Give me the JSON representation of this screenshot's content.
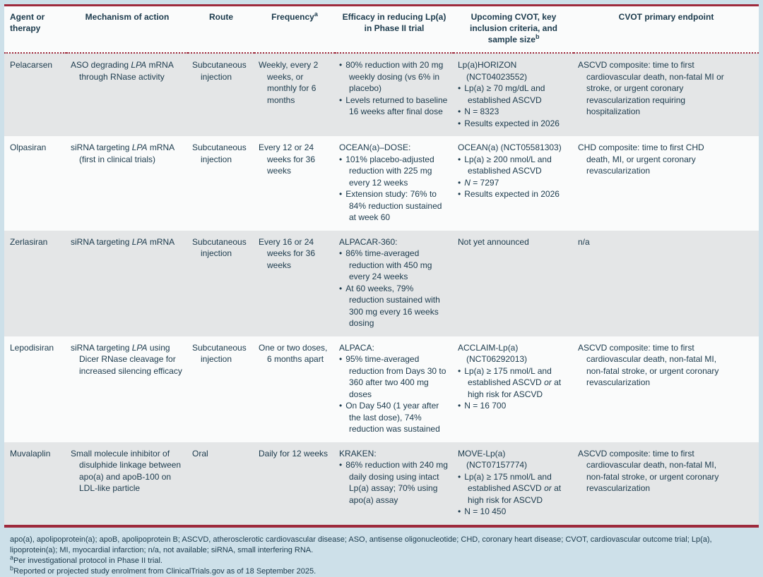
{
  "colors": {
    "page_bg": "#cde0e9",
    "accent_red": "#9e2a3c",
    "row_gray": "#e4e6e7",
    "row_white": "#fafbfb",
    "text": "#1b3a4c"
  },
  "bullet_glyph": "•",
  "table": {
    "columns": [
      "Agent or therapy",
      "Mechanism of action",
      "Route",
      "Frequency^a^",
      "Efficacy in reducing Lp(a) in Phase II trial",
      "Upcoming CVOT, key inclusion criteria, and sample size^b^",
      "CVOT primary endpoint"
    ],
    "rows": [
      {
        "agent": "Pelacarsen",
        "mechanism": "ASO degrading *LPA* mRNA through RNase activity",
        "route": "Subcutaneous injection",
        "frequency": "Weekly, every 2 weeks, or monthly for 6 months",
        "efficacy": {
          "title": "",
          "bullets": [
            "80% reduction with 20 mg weekly dosing (vs 6% in placebo)",
            "Levels returned to baseline 16 weeks after final dose"
          ]
        },
        "cvot": {
          "title": "Lp(a)HORIZON (NCT04023552)",
          "bullets": [
            "Lp(a) ≥ 70 mg/dL and established ASCVD",
            "N = 8323",
            "Results expected in 2026"
          ]
        },
        "endpoint": "ASCVD composite: time to first cardiovascular death, non-fatal MI or stroke, or urgent coronary revascularization requiring hospitalization"
      },
      {
        "agent": "Olpasiran",
        "mechanism": "siRNA targeting *LPA* mRNA (first in clinical trials)",
        "route": "Subcutaneous injection",
        "frequency": "Every 12 or 24 weeks for 36 weeks",
        "efficacy": {
          "title": "OCEAN(a)–DOSE:",
          "bullets": [
            "101% placebo-adjusted reduction with 225 mg every 12 weeks",
            "Extension study: 76% to 84% reduction sustained at week 60"
          ]
        },
        "cvot": {
          "title": "OCEAN(a) (NCT05581303)",
          "bullets": [
            "Lp(a) ≥ 200 nmol/L and established ASCVD",
            "*N* = 7297",
            "Results expected in 2026"
          ]
        },
        "endpoint": "CHD composite: time to first CHD death, MI, or urgent coronary revascularization"
      },
      {
        "agent": "Zerlasiran",
        "mechanism": "siRNA targeting *LPA* mRNA",
        "route": "Subcutaneous injection",
        "frequency": "Every 16 or 24 weeks for 36 weeks",
        "efficacy": {
          "title": "ALPACAR-360:",
          "bullets": [
            "86% time-averaged reduction with 450 mg every 24 weeks",
            "At 60 weeks, 79% reduction sustained with 300 mg every 16 weeks dosing"
          ]
        },
        "cvot": {
          "title": "Not yet announced",
          "bullets": []
        },
        "endpoint": "n/a"
      },
      {
        "agent": "Lepodisiran",
        "mechanism": "siRNA targeting *LPA* using Dicer RNase cleavage for increased silencing efficacy",
        "route": "Subcutaneous injection",
        "frequency": "One or two doses, 6 months apart",
        "efficacy": {
          "title": "ALPACA:",
          "bullets": [
            "95% time-averaged reduction from Days 30 to 360 after two 400 mg doses",
            "On Day 540 (1 year after the last dose), 74% reduction was sustained"
          ]
        },
        "cvot": {
          "title": "ACCLAIM-Lp(a) (NCT06292013)",
          "bullets": [
            "Lp(a) ≥ 175 nmol/L and established ASCVD *or* at high risk for ASCVD",
            "N = 16 700"
          ]
        },
        "endpoint": "ASCVD composite: time to first cardiovascular death, non-fatal MI, non-fatal stroke, or urgent coronary revascularization"
      },
      {
        "agent": "Muvalaplin",
        "mechanism": "Small molecule inhibitor of disulphide linkage between apo(a) and apoB-100 on LDL-like particle",
        "route": "Oral",
        "frequency": "Daily for 12 weeks",
        "efficacy": {
          "title": "KRAKEN:",
          "bullets": [
            "86% reduction with 240 mg daily dosing using intact Lp(a) assay; 70% using apo(a) assay"
          ]
        },
        "cvot": {
          "title": "MOVE-Lp(a) (NCT07157774)",
          "bullets": [
            "Lp(a) ≥ 175 nmol/L and established ASCVD *or* at high risk for ASCVD",
            "N = 10 450"
          ]
        },
        "endpoint": "ASCVD composite: time to first cardiovascular death, non-fatal MI, non-fatal stroke, or urgent coronary revascularization"
      }
    ]
  },
  "footnotes": {
    "abbreviations": "apo(a), apolipoprotein(a); apoB, apolipoprotein B; ASCVD, atherosclerotic cardiovascular disease; ASO, antisense oligonucleotide; CHD, coronary heart disease; CVOT, cardiovascular outcome trial; Lp(a), lipoprotein(a); MI, myocardial infarction; n/a, not available; siRNA, small interfering RNA.",
    "note_a": "^a^Per investigational protocol in Phase II trial.",
    "note_b": "^b^Reported or projected study enrolment from ClinicalTrials.gov as of 18 September 2025."
  }
}
